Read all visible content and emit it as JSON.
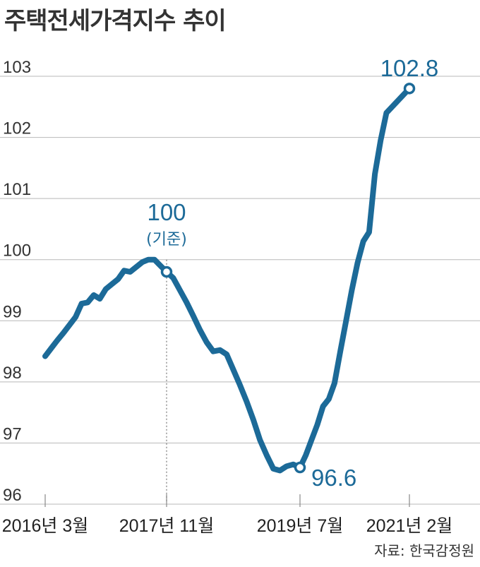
{
  "title": "주택전세가격지수 추이",
  "source": "자료: 한국감정원",
  "colors": {
    "line": "#1c6a98",
    "grid": "#b8b8b8",
    "text": "#333333"
  },
  "chart_data": {
    "type": "line",
    "title": "주택전세가격지수 추이",
    "ylim": [
      96,
      103
    ],
    "yticks": [
      "96",
      "97",
      "98",
      "99",
      "100",
      "101",
      "102",
      "103"
    ],
    "grid": "horizontal",
    "x_tick_labels": [
      "2016년 3월",
      "2017년 11월",
      "2019년 7월",
      "2021년 2월"
    ],
    "x_tick_dates": [
      "2016-03",
      "2017-11",
      "2019-07",
      "2021-02"
    ],
    "series": [
      {
        "x": [
          "2016-03",
          "2016-04",
          "2016-05",
          "2016-06",
          "2016-07",
          "2016-08",
          "2016-09",
          "2016-10",
          "2016-11",
          "2016-12",
          "2017-01",
          "2017-02",
          "2017-03",
          "2017-04",
          "2017-05",
          "2017-06",
          "2017-07",
          "2017-08",
          "2017-09",
          "2017-10",
          "2017-11",
          "2017-12",
          "2018-01",
          "2018-02",
          "2018-03",
          "2018-04",
          "2018-05",
          "2018-06",
          "2018-07",
          "2018-08",
          "2018-09",
          "2018-10",
          "2018-11",
          "2018-12",
          "2019-01",
          "2019-02",
          "2019-03",
          "2019-04",
          "2019-05",
          "2019-06",
          "2019-07",
          "2019-08",
          "2019-09",
          "2019-10",
          "2019-11",
          "2019-12",
          "2020-01",
          "2020-02",
          "2020-03",
          "2020-04",
          "2020-05",
          "2020-06",
          "2020-07",
          "2020-08",
          "2020-09",
          "2020-10",
          "2020-11",
          "2020-12",
          "2021-01",
          "2021-02"
        ],
        "values": [
          98.42,
          98.55,
          98.68,
          98.8,
          98.93,
          99.06,
          99.28,
          99.3,
          99.42,
          99.36,
          99.52,
          99.6,
          99.68,
          99.82,
          99.8,
          99.88,
          99.96,
          100.0,
          100.0,
          99.9,
          99.8,
          99.7,
          99.5,
          99.3,
          99.08,
          98.85,
          98.65,
          98.5,
          98.52,
          98.45,
          98.2,
          97.95,
          97.68,
          97.38,
          97.05,
          96.8,
          96.58,
          96.55,
          96.62,
          96.65,
          96.6,
          96.8,
          97.05,
          97.3,
          97.6,
          97.72,
          97.98,
          98.5,
          99.0,
          99.5,
          99.95,
          100.3,
          100.45,
          101.4,
          101.95,
          102.4,
          102.8,
          102.8,
          102.8,
          102.8
        ],
        "annotations": [
          {
            "value": "100",
            "sub": "(기준)",
            "x": "2017-11"
          },
          {
            "value": "96.6",
            "x": "2019-07"
          },
          {
            "value": "102.8",
            "x": "2021-02"
          }
        ]
      }
    ]
  }
}
